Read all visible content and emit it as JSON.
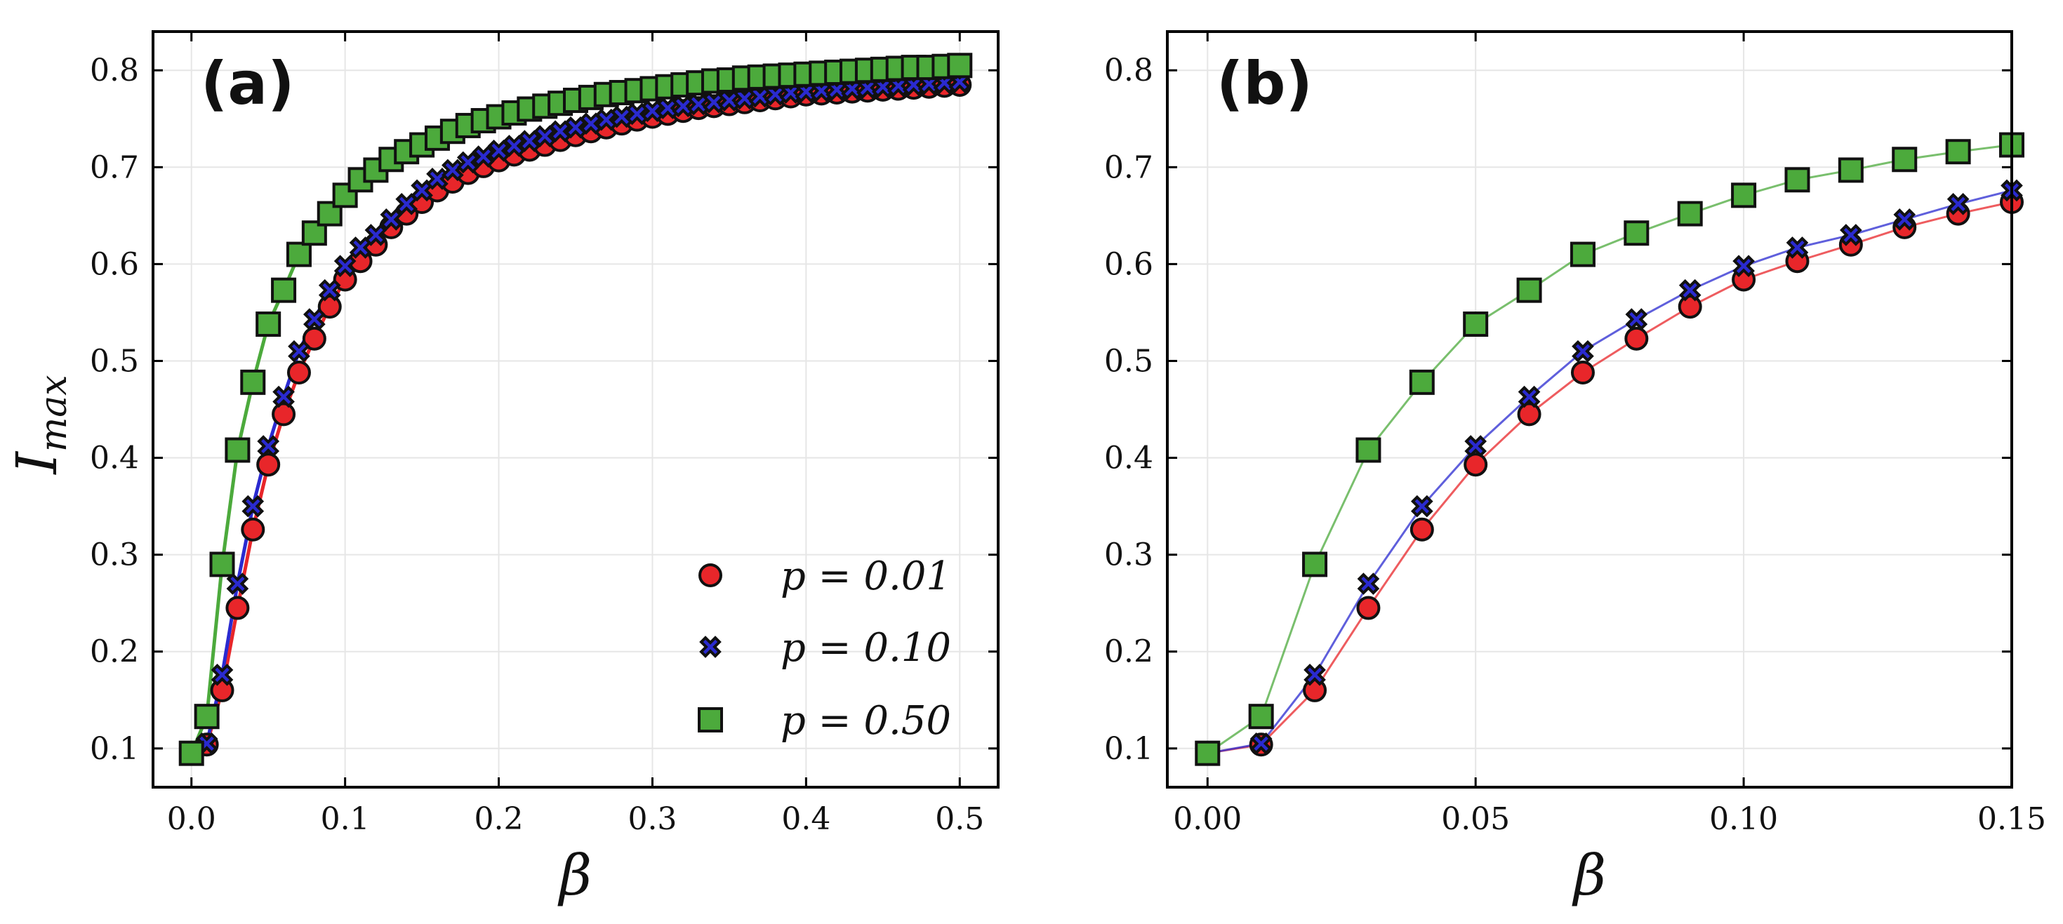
{
  "chart_data": [
    {
      "type": "line",
      "panel_label": "(a)",
      "xlabel": "β",
      "ylabel": "I",
      "ylabel_sub": "max",
      "xlim": [
        -0.025,
        0.525
      ],
      "ylim": [
        0.06,
        0.84
      ],
      "xticks": [
        0.0,
        0.1,
        0.2,
        0.3,
        0.4,
        0.5
      ],
      "xtick_labels": [
        "0.0",
        "0.1",
        "0.2",
        "0.3",
        "0.4",
        "0.5"
      ],
      "yticks": [
        0.1,
        0.2,
        0.3,
        0.4,
        0.5,
        0.6,
        0.7,
        0.8
      ],
      "ytick_labels": [
        "0.1",
        "0.2",
        "0.3",
        "0.4",
        "0.5",
        "0.6",
        "0.7",
        "0.8"
      ],
      "grid": true,
      "legend": "bottom-right",
      "marker_step": 0.01,
      "series": [
        {
          "name": "p = 0.01",
          "marker": "circle",
          "color": "#e8262a",
          "x": [
            0.0,
            0.01,
            0.02,
            0.03,
            0.04,
            0.05,
            0.06,
            0.07,
            0.08,
            0.09,
            0.1,
            0.11,
            0.12,
            0.13,
            0.14,
            0.15,
            0.16,
            0.17,
            0.18,
            0.19,
            0.2,
            0.21,
            0.22,
            0.23,
            0.24,
            0.25,
            0.26,
            0.27,
            0.28,
            0.29,
            0.3,
            0.31,
            0.32,
            0.33,
            0.34,
            0.35,
            0.36,
            0.37,
            0.38,
            0.39,
            0.4,
            0.41,
            0.42,
            0.43,
            0.44,
            0.45,
            0.46,
            0.47,
            0.48,
            0.49,
            0.5
          ],
          "y": [
            0.095,
            0.104,
            0.16,
            0.245,
            0.326,
            0.393,
            0.445,
            0.488,
            0.523,
            0.556,
            0.584,
            0.603,
            0.62,
            0.638,
            0.652,
            0.664,
            0.676,
            0.685,
            0.694,
            0.701,
            0.707,
            0.713,
            0.718,
            0.723,
            0.728,
            0.733,
            0.737,
            0.741,
            0.745,
            0.749,
            0.752,
            0.755,
            0.758,
            0.761,
            0.763,
            0.765,
            0.767,
            0.769,
            0.771,
            0.773,
            0.775,
            0.776,
            0.777,
            0.778,
            0.779,
            0.78,
            0.781,
            0.782,
            0.783,
            0.784,
            0.785
          ]
        },
        {
          "name": "p = 0.10",
          "marker": "x",
          "color": "#2a2ad0",
          "x": [
            0.0,
            0.01,
            0.02,
            0.03,
            0.04,
            0.05,
            0.06,
            0.07,
            0.08,
            0.09,
            0.1,
            0.11,
            0.12,
            0.13,
            0.14,
            0.15,
            0.16,
            0.17,
            0.18,
            0.19,
            0.2,
            0.21,
            0.22,
            0.23,
            0.24,
            0.25,
            0.26,
            0.27,
            0.28,
            0.29,
            0.3,
            0.31,
            0.32,
            0.33,
            0.34,
            0.35,
            0.36,
            0.37,
            0.38,
            0.39,
            0.4,
            0.41,
            0.42,
            0.43,
            0.44,
            0.45,
            0.46,
            0.47,
            0.48,
            0.49,
            0.5
          ],
          "y": [
            0.095,
            0.105,
            0.176,
            0.27,
            0.35,
            0.412,
            0.463,
            0.51,
            0.543,
            0.573,
            0.598,
            0.617,
            0.63,
            0.646,
            0.662,
            0.676,
            0.688,
            0.697,
            0.705,
            0.711,
            0.717,
            0.722,
            0.727,
            0.732,
            0.737,
            0.741,
            0.745,
            0.749,
            0.752,
            0.755,
            0.758,
            0.761,
            0.763,
            0.765,
            0.767,
            0.769,
            0.771,
            0.773,
            0.775,
            0.777,
            0.778,
            0.779,
            0.78,
            0.781,
            0.782,
            0.783,
            0.784,
            0.785,
            0.786,
            0.787,
            0.788
          ]
        },
        {
          "name": "p = 0.50",
          "marker": "square",
          "color": "#4caa3c",
          "x": [
            0.0,
            0.01,
            0.02,
            0.03,
            0.04,
            0.05,
            0.06,
            0.07,
            0.08,
            0.09,
            0.1,
            0.11,
            0.12,
            0.13,
            0.14,
            0.15,
            0.16,
            0.17,
            0.18,
            0.19,
            0.2,
            0.21,
            0.22,
            0.23,
            0.24,
            0.25,
            0.26,
            0.27,
            0.28,
            0.29,
            0.3,
            0.31,
            0.32,
            0.33,
            0.34,
            0.35,
            0.36,
            0.37,
            0.38,
            0.39,
            0.4,
            0.41,
            0.42,
            0.43,
            0.44,
            0.45,
            0.46,
            0.47,
            0.48,
            0.49,
            0.5
          ],
          "y": [
            0.095,
            0.133,
            0.29,
            0.408,
            0.478,
            0.538,
            0.573,
            0.61,
            0.632,
            0.652,
            0.671,
            0.687,
            0.697,
            0.708,
            0.716,
            0.723,
            0.73,
            0.737,
            0.743,
            0.748,
            0.752,
            0.756,
            0.76,
            0.763,
            0.766,
            0.769,
            0.772,
            0.775,
            0.777,
            0.779,
            0.781,
            0.783,
            0.785,
            0.787,
            0.789,
            0.79,
            0.792,
            0.793,
            0.794,
            0.795,
            0.796,
            0.797,
            0.798,
            0.799,
            0.8,
            0.801,
            0.802,
            0.803,
            0.803,
            0.804,
            0.805
          ]
        }
      ]
    },
    {
      "type": "line",
      "panel_label": "(b)",
      "xlabel": "β",
      "xlim": [
        -0.0075,
        0.15
      ],
      "ylim": [
        0.06,
        0.84
      ],
      "xticks": [
        0.0,
        0.05,
        0.1,
        0.15
      ],
      "xtick_labels": [
        "0.00",
        "0.05",
        "0.10",
        "0.15"
      ],
      "yticks": [
        0.1,
        0.2,
        0.3,
        0.4,
        0.5,
        0.6,
        0.7,
        0.8
      ],
      "ytick_labels": [
        "0.1",
        "0.2",
        "0.3",
        "0.4",
        "0.5",
        "0.6",
        "0.7",
        "0.8"
      ],
      "grid": true,
      "series": [
        {
          "name": "p = 0.01",
          "marker": "circle",
          "color": "#e8262a",
          "x": [
            0.0,
            0.01,
            0.02,
            0.03,
            0.04,
            0.05,
            0.06,
            0.07,
            0.08,
            0.09,
            0.1,
            0.11,
            0.12,
            0.13,
            0.14,
            0.15
          ],
          "y": [
            0.095,
            0.104,
            0.16,
            0.245,
            0.326,
            0.393,
            0.445,
            0.488,
            0.523,
            0.556,
            0.584,
            0.603,
            0.62,
            0.638,
            0.652,
            0.664
          ]
        },
        {
          "name": "p = 0.10",
          "marker": "x",
          "color": "#2a2ad0",
          "x": [
            0.0,
            0.01,
            0.02,
            0.03,
            0.04,
            0.05,
            0.06,
            0.07,
            0.08,
            0.09,
            0.1,
            0.11,
            0.12,
            0.13,
            0.14,
            0.15
          ],
          "y": [
            0.095,
            0.105,
            0.176,
            0.27,
            0.35,
            0.412,
            0.463,
            0.51,
            0.543,
            0.573,
            0.598,
            0.617,
            0.63,
            0.646,
            0.662,
            0.676
          ]
        },
        {
          "name": "p = 0.50",
          "marker": "square",
          "color": "#4caa3c",
          "x": [
            0.0,
            0.01,
            0.02,
            0.03,
            0.04,
            0.05,
            0.06,
            0.07,
            0.08,
            0.09,
            0.1,
            0.11,
            0.12,
            0.13,
            0.14,
            0.15
          ],
          "y": [
            0.095,
            0.133,
            0.29,
            0.408,
            0.478,
            0.538,
            0.573,
            0.61,
            0.632,
            0.652,
            0.671,
            0.687,
            0.697,
            0.708,
            0.716,
            0.723
          ]
        }
      ]
    }
  ]
}
